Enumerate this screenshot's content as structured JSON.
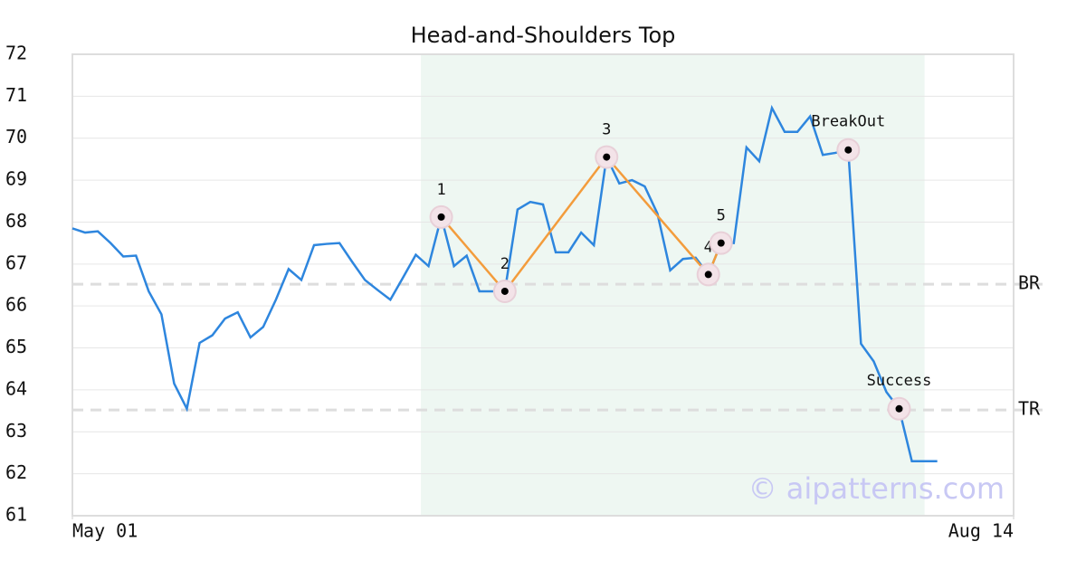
{
  "chart_data": {
    "type": "line",
    "title": "Head-and-Shoulders Top",
    "values": [
      67.85,
      67.75,
      67.78,
      67.5,
      67.18,
      67.2,
      66.35,
      65.8,
      64.15,
      63.55,
      65.12,
      65.3,
      65.7,
      65.85,
      65.25,
      65.5,
      66.15,
      66.88,
      66.62,
      67.45,
      67.48,
      67.5,
      67.05,
      66.62,
      66.38,
      66.15,
      66.68,
      67.22,
      66.95,
      68.12,
      66.95,
      67.2,
      66.35,
      66.35,
      66.35,
      68.3,
      68.48,
      68.42,
      67.28,
      67.28,
      67.75,
      67.45,
      69.55,
      68.92,
      69.0,
      68.85,
      68.2,
      66.85,
      67.12,
      67.15,
      66.75,
      67.5,
      67.5,
      69.78,
      69.45,
      70.72,
      70.15,
      70.15,
      70.52,
      69.6,
      69.65,
      69.72,
      65.1,
      64.68,
      63.95,
      63.55,
      62.3,
      62.3,
      62.3
    ],
    "color": "#2e86de",
    "xlim": [
      0,
      74
    ],
    "xticks": [
      {
        "value": 0,
        "label": "May 01"
      },
      {
        "value": 74,
        "label": "Aug 14"
      }
    ],
    "ylim": [
      61,
      72
    ],
    "yticks": [
      61,
      62,
      63,
      64,
      65,
      66,
      67,
      68,
      69,
      70,
      71,
      72
    ],
    "grid": true,
    "highlight_x": [
      27.4,
      67
    ],
    "pattern_color": "#f39c3c",
    "pattern": [
      {
        "label": "1",
        "x": 29,
        "y": 68.12
      },
      {
        "label": "2",
        "x": 34,
        "y": 66.35
      },
      {
        "label": "3",
        "x": 42,
        "y": 69.55
      },
      {
        "label": "4",
        "x": 50,
        "y": 66.75
      },
      {
        "label": "5",
        "x": 51,
        "y": 67.5
      }
    ],
    "events": [
      {
        "label": "BreakOut",
        "x": 61,
        "y": 69.72
      },
      {
        "label": "Success",
        "x": 65,
        "y": 63.55
      }
    ],
    "levels": [
      {
        "label": "BR",
        "value": 66.52
      },
      {
        "label": "TR",
        "value": 63.52
      }
    ],
    "watermark": "© aipatterns.com"
  }
}
